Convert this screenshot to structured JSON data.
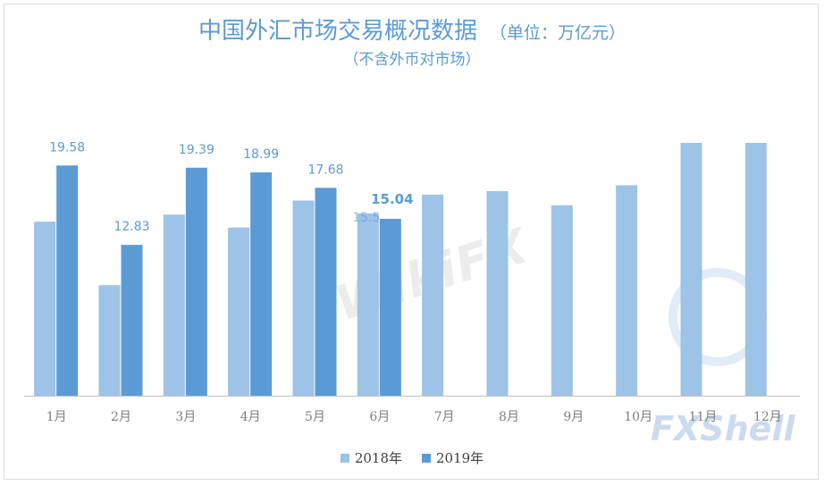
{
  "header": {
    "title": "中国外汇市场交易概况数据",
    "unit": "（单位：万亿元）",
    "subtitle": "（不含外币对市场）"
  },
  "watermarks": {
    "wikifx": "WikiFX",
    "fxshell": "FXShell"
  },
  "colors": {
    "series_2018": "#9dc3e6",
    "series_2019": "#5b9bd5",
    "label": "#5b9bd5",
    "axis_text": "#7f7f7f",
    "axis_line": "#bfbfbf"
  },
  "chart_data": {
    "type": "bar",
    "title": "中国外汇市场交易概况数据",
    "subtitle": "（不含外币对市场）",
    "xlabel": "",
    "ylabel": "",
    "ylim": [
      0,
      21.5
    ],
    "grid": false,
    "legend_position": "bottom",
    "categories": [
      "1月",
      "2月",
      "3月",
      "4月",
      "5月",
      "6月",
      "7月",
      "8月",
      "9月",
      "10月",
      "11月",
      "12月"
    ],
    "series": [
      {
        "name": "2018年",
        "values": [
          14.8,
          9.4,
          15.4,
          14.3,
          16.6,
          15.5,
          17.1,
          17.4,
          16.2,
          17.9,
          21.5,
          21.5
        ],
        "labels": [
          "",
          "",
          "",
          "",
          "",
          "15.5",
          "",
          "",
          "",
          "",
          "",
          ""
        ]
      },
      {
        "name": "2019年",
        "values": [
          19.58,
          12.83,
          19.39,
          18.99,
          17.68,
          15.04,
          null,
          null,
          null,
          null,
          null,
          null
        ],
        "labels": [
          "19.58",
          "12.83",
          "19.39",
          "18.99",
          "17.68",
          "15.04",
          "",
          "",
          "",
          "",
          "",
          ""
        ]
      }
    ]
  }
}
